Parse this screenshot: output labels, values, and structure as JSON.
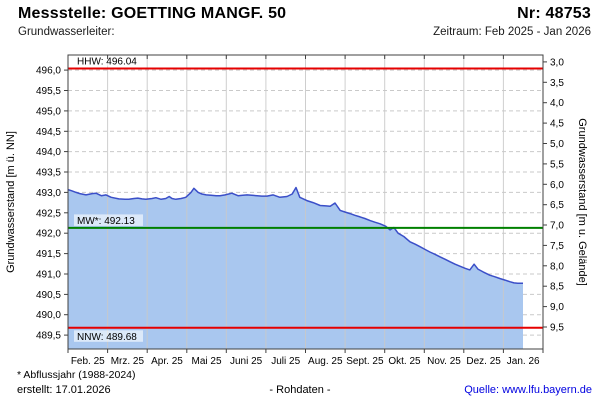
{
  "header": {
    "title": "Messstelle: GOETTING MANGF. 50",
    "number": "Nr: 48753",
    "aquifer_label": "Grundwasserleiter:",
    "period_label": "Zeitraum: Feb 2025 - Jan 2026"
  },
  "footer": {
    "note": "* Abflussjahr (1988-2024)",
    "created": "erstellt:  17.01.2026",
    "center": "- Rohdaten -",
    "source": "Quelle: www.lfu.bayern.de"
  },
  "chart_data": {
    "type": "area",
    "ylabel_left": "Grundwasserstand [m ü. NN]",
    "ylabel_right": "Grundwasserstand [m u. Gelände]",
    "x_tick_labels": [
      "Feb. 25",
      "Mrz. 25",
      "Apr. 25",
      "Mai 25",
      "Juni 25",
      "Juli 25",
      "Aug. 25",
      "Sept. 25",
      "Okt. 25",
      "Nov. 25",
      "Dez. 25",
      "Jan. 26"
    ],
    "ylim_left": [
      489.16,
      496.37
    ],
    "yticks_left": [
      489.5,
      490.0,
      490.5,
      491.0,
      491.5,
      492.0,
      492.5,
      493.0,
      493.5,
      494.0,
      494.5,
      495.0,
      495.5,
      496.0
    ],
    "yticks_right": [
      3.0,
      3.5,
      4.0,
      4.5,
      5.0,
      5.5,
      6.0,
      6.5,
      7.0,
      7.5,
      8.0,
      8.5,
      9.0,
      9.5
    ],
    "ground_level": 499.2,
    "grid": true,
    "legend": "none",
    "reference_lines": [
      {
        "name": "HHW",
        "label": "HHW: 496.04",
        "value": 496.04,
        "color": "#e60000",
        "label_below": false
      },
      {
        "name": "MW",
        "label": "MW*: 492.13",
        "value": 492.13,
        "color": "#008000",
        "label_below": false
      },
      {
        "name": "NNW",
        "label": "NNW: 489.68",
        "value": 489.68,
        "color": "#e60000",
        "label_below": true
      }
    ],
    "series": [
      {
        "name": "Grundwasserstand Rohdaten Feb 2025 - 17 Jan 2026 (x = Anteil der Zeitachse, y = m ü. NN)",
        "points": [
          [
            0.0,
            493.07
          ],
          [
            0.008,
            493.04
          ],
          [
            0.017,
            493.0
          ],
          [
            0.025,
            492.97
          ],
          [
            0.038,
            492.94
          ],
          [
            0.051,
            492.97
          ],
          [
            0.059,
            492.98
          ],
          [
            0.07,
            492.92
          ],
          [
            0.08,
            492.94
          ],
          [
            0.091,
            492.88
          ],
          [
            0.107,
            492.84
          ],
          [
            0.12,
            492.83
          ],
          [
            0.128,
            492.83
          ],
          [
            0.139,
            492.85
          ],
          [
            0.147,
            492.86
          ],
          [
            0.156,
            492.84
          ],
          [
            0.164,
            492.83
          ],
          [
            0.177,
            492.85
          ],
          [
            0.185,
            492.87
          ],
          [
            0.196,
            492.83
          ],
          [
            0.206,
            492.85
          ],
          [
            0.213,
            492.9
          ],
          [
            0.219,
            492.85
          ],
          [
            0.227,
            492.83
          ],
          [
            0.238,
            492.85
          ],
          [
            0.248,
            492.88
          ],
          [
            0.259,
            493.0
          ],
          [
            0.265,
            493.1
          ],
          [
            0.274,
            493.0
          ],
          [
            0.282,
            492.96
          ],
          [
            0.291,
            492.94
          ],
          [
            0.301,
            492.93
          ],
          [
            0.312,
            492.92
          ],
          [
            0.32,
            492.92
          ],
          [
            0.331,
            492.94
          ],
          [
            0.345,
            492.98
          ],
          [
            0.358,
            492.92
          ],
          [
            0.368,
            492.93
          ],
          [
            0.377,
            492.94
          ],
          [
            0.387,
            492.93
          ],
          [
            0.398,
            492.92
          ],
          [
            0.408,
            492.91
          ],
          [
            0.419,
            492.91
          ],
          [
            0.432,
            492.94
          ],
          [
            0.446,
            492.88
          ],
          [
            0.461,
            492.9
          ],
          [
            0.472,
            492.96
          ],
          [
            0.48,
            493.12
          ],
          [
            0.488,
            492.88
          ],
          [
            0.503,
            492.8
          ],
          [
            0.516,
            492.75
          ],
          [
            0.531,
            492.68
          ],
          [
            0.543,
            492.67
          ],
          [
            0.552,
            492.66
          ],
          [
            0.562,
            492.74
          ],
          [
            0.573,
            492.56
          ],
          [
            0.583,
            492.52
          ],
          [
            0.594,
            492.48
          ],
          [
            0.604,
            492.44
          ],
          [
            0.615,
            492.4
          ],
          [
            0.625,
            492.36
          ],
          [
            0.636,
            492.31
          ],
          [
            0.646,
            492.27
          ],
          [
            0.657,
            492.23
          ],
          [
            0.669,
            492.17
          ],
          [
            0.678,
            492.08
          ],
          [
            0.686,
            492.14
          ],
          [
            0.695,
            492.0
          ],
          [
            0.707,
            491.92
          ],
          [
            0.72,
            491.79
          ],
          [
            0.731,
            491.73
          ],
          [
            0.741,
            491.67
          ],
          [
            0.752,
            491.6
          ],
          [
            0.762,
            491.54
          ],
          [
            0.773,
            491.48
          ],
          [
            0.783,
            491.42
          ],
          [
            0.794,
            491.36
          ],
          [
            0.804,
            491.3
          ],
          [
            0.815,
            491.24
          ],
          [
            0.825,
            491.19
          ],
          [
            0.836,
            491.14
          ],
          [
            0.846,
            491.1
          ],
          [
            0.855,
            491.24
          ],
          [
            0.863,
            491.12
          ],
          [
            0.874,
            491.05
          ],
          [
            0.888,
            490.97
          ],
          [
            0.899,
            490.93
          ],
          [
            0.909,
            490.89
          ],
          [
            0.92,
            490.85
          ],
          [
            0.93,
            490.81
          ],
          [
            0.939,
            490.78
          ],
          [
            0.947,
            490.77
          ],
          [
            0.958,
            490.77
          ]
        ]
      }
    ],
    "colors": {
      "line": "#3b4fc8",
      "fill": "#a9c7ef",
      "grid": "#c9c9c9",
      "axis": "#404040",
      "ref_red": "#e60000",
      "ref_green": "#008000",
      "link_blue": "#0000e0"
    }
  }
}
